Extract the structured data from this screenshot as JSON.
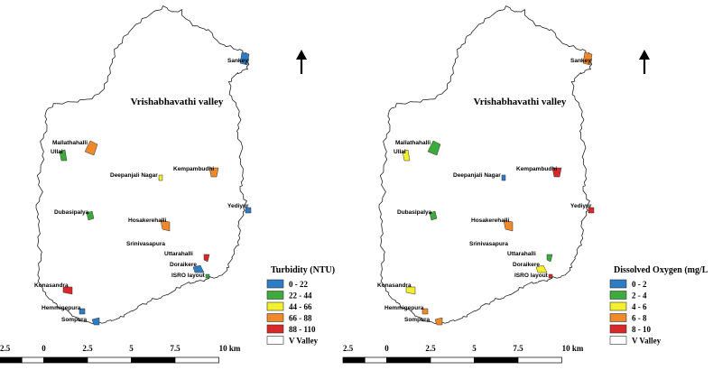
{
  "maps": [
    {
      "id": "turbidity",
      "valley_title": "Vrishabhavathi valley",
      "legend": {
        "title": "Turbidity (NTU)",
        "classes": [
          {
            "label": "0 - 22",
            "color": "#2e7dc4"
          },
          {
            "label": "22 - 44",
            "color": "#3daa3d"
          },
          {
            "label": "44 - 66",
            "color": "#f2ef2e"
          },
          {
            "label": "66 - 88",
            "color": "#ee8a2c"
          },
          {
            "label": "88 - 110",
            "color": "#d8282a"
          }
        ],
        "outline_label": "V Valley"
      },
      "sites": [
        {
          "name": "Sankey",
          "class": 0
        },
        {
          "name": "Mallathahalli",
          "class": 3
        },
        {
          "name": "Ullal",
          "class": 1
        },
        {
          "name": "Deepanjali Nagar",
          "class": 2
        },
        {
          "name": "Kempambudhi",
          "class": 3
        },
        {
          "name": "Yediyur",
          "class": 0
        },
        {
          "name": "Dubasipalya",
          "class": 1
        },
        {
          "name": "Hosakerehalli",
          "class": 3
        },
        {
          "name": "Srinivasapura",
          "class": 4
        },
        {
          "name": "Uttarahalli",
          "class": 4
        },
        {
          "name": "Doraikere",
          "class": 0
        },
        {
          "name": "ISRO layout",
          "class": 1
        },
        {
          "name": "Konasandra",
          "class": 4
        },
        {
          "name": "Hemmigepura",
          "class": 0
        },
        {
          "name": "Sompura",
          "class": 0
        }
      ],
      "scale_labels": [
        "2.5",
        "0",
        "2.5",
        "5",
        "7.5",
        "10 km"
      ]
    },
    {
      "id": "dissolved-oxygen",
      "valley_title": "Vrishabhavathi valley",
      "legend": {
        "title": "Dissolved Oxygen (mg/L",
        "classes": [
          {
            "label": "0 - 2",
            "color": "#2e7dc4"
          },
          {
            "label": "2 - 4",
            "color": "#3daa3d"
          },
          {
            "label": "4 - 6",
            "color": "#f2ef2e"
          },
          {
            "label": "6 - 8",
            "color": "#ee8a2c"
          },
          {
            "label": "8 - 10",
            "color": "#d8282a"
          }
        ],
        "outline_label": "V Valley"
      },
      "sites": [
        {
          "name": "Sankey",
          "class": 3
        },
        {
          "name": "Mallathahalli",
          "class": 1
        },
        {
          "name": "Ullal",
          "class": 2
        },
        {
          "name": "Deepanjali Nagar",
          "class": 0
        },
        {
          "name": "Kempambudhi",
          "class": 4
        },
        {
          "name": "Yediyur",
          "class": 4
        },
        {
          "name": "Dubasipalya",
          "class": 1
        },
        {
          "name": "Hosakerehalli",
          "class": 3
        },
        {
          "name": "Srinivasapura",
          "class": 1
        },
        {
          "name": "Uttarahalli",
          "class": 1
        },
        {
          "name": "Doraikere",
          "class": 2
        },
        {
          "name": "ISRO layout",
          "class": 4
        },
        {
          "name": "Konasandra",
          "class": 2
        },
        {
          "name": "Hemmigepura",
          "class": 3
        },
        {
          "name": "Sompura",
          "class": 3
        }
      ],
      "scale_labels": [
        "2.5",
        "0",
        "2.5",
        "5",
        "7.5",
        "10 km"
      ]
    }
  ],
  "icons": {
    "north_arrow": "north-arrow-icon"
  }
}
